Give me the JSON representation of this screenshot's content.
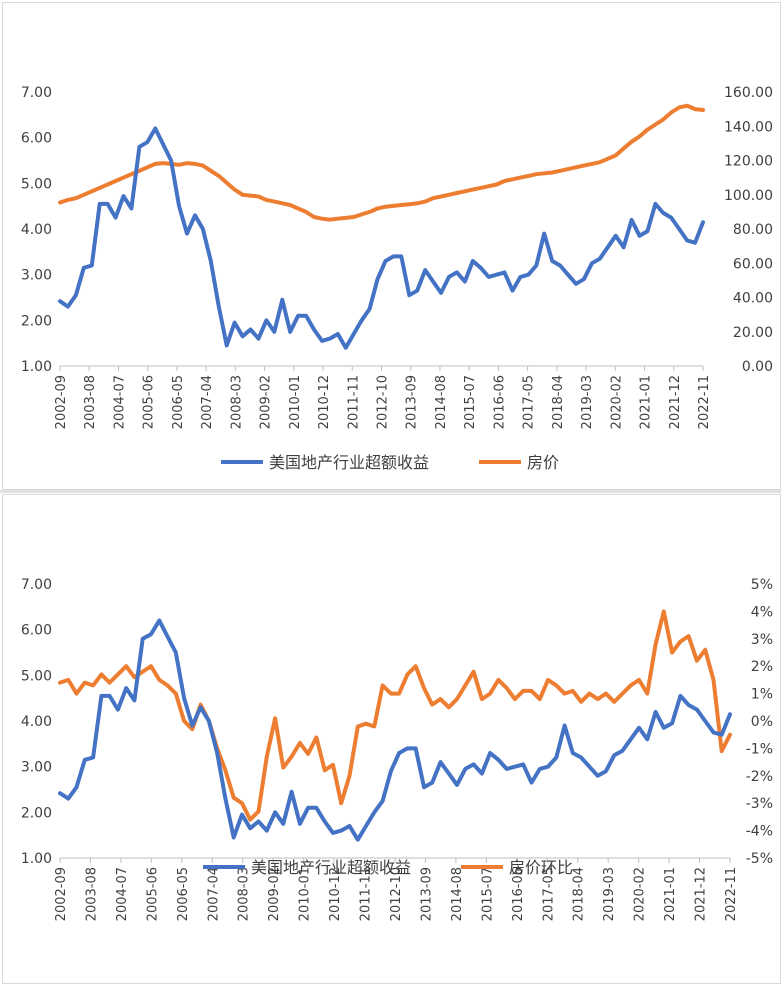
{
  "chart_data": [
    {
      "type": "line",
      "x_ticks": [
        "2002-09",
        "2003-08",
        "2004-07",
        "2005-06",
        "2006-05",
        "2007-04",
        "2008-03",
        "2009-02",
        "2010-01",
        "2010-12",
        "2011-11",
        "2012-10",
        "2013-09",
        "2014-08",
        "2015-07",
        "2016-06",
        "2017-05",
        "2018-04",
        "2019-03",
        "2020-02",
        "2021-01",
        "2021-12",
        "2022-11"
      ],
      "y_left": {
        "min": 1.0,
        "max": 7.0,
        "ticks": [
          "1.00",
          "2.00",
          "3.00",
          "4.00",
          "5.00",
          "6.00",
          "7.00"
        ]
      },
      "y_right": {
        "min": 0,
        "max": 160,
        "ticks": [
          "0.00",
          "20.00",
          "40.00",
          "60.00",
          "80.00",
          "100.00",
          "120.00",
          "140.00",
          "160.00"
        ]
      },
      "legend_position": "bottom",
      "grid": false,
      "series": [
        {
          "name": "美国地产行业超额收益",
          "axis": "left",
          "color": "#4472c4",
          "values": [
            2.42,
            2.3,
            2.55,
            3.15,
            3.2,
            4.55,
            4.55,
            4.25,
            4.72,
            4.45,
            5.8,
            5.9,
            6.2,
            5.85,
            5.5,
            4.5,
            3.9,
            4.3,
            4.0,
            3.3,
            2.3,
            1.45,
            1.95,
            1.65,
            1.8,
            1.6,
            2.0,
            1.75,
            2.45,
            1.75,
            2.1,
            2.1,
            1.8,
            1.55,
            1.6,
            1.7,
            1.4,
            1.7,
            2.0,
            2.25,
            2.9,
            3.3,
            3.4,
            3.4,
            2.55,
            2.65,
            3.1,
            2.85,
            2.6,
            2.95,
            3.05,
            2.85,
            3.3,
            3.15,
            2.95,
            3.0,
            3.05,
            2.65,
            2.95,
            3.0,
            3.2,
            3.9,
            3.3,
            3.2,
            3.0,
            2.8,
            2.9,
            3.25,
            3.35,
            3.6,
            3.85,
            3.6,
            4.2,
            3.85,
            3.95,
            4.55,
            4.35,
            4.25,
            4.0,
            3.75,
            3.7,
            4.15
          ]
        },
        {
          "name": "房价",
          "axis": "right",
          "color": "#ed7d31",
          "values": [
            95.5,
            97,
            98,
            100,
            102,
            104,
            106,
            108,
            110,
            112,
            114,
            116,
            118,
            118.5,
            118,
            117.5,
            118.5,
            118,
            117,
            114,
            111,
            107,
            103,
            100,
            99.5,
            99,
            97,
            96,
            95,
            94,
            92,
            90,
            87,
            86,
            85.5,
            86,
            86.5,
            87,
            88.5,
            90,
            92,
            93,
            93.5,
            94,
            94.5,
            95,
            96,
            98,
            99,
            100,
            101,
            102,
            103,
            104,
            105,
            106,
            108,
            109,
            110,
            111,
            112,
            112.5,
            113,
            114,
            115,
            116,
            117,
            118,
            119,
            121,
            123,
            127,
            131,
            134,
            138,
            141,
            144,
            148,
            151,
            152,
            150,
            149.5
          ]
        }
      ]
    },
    {
      "type": "line",
      "x_ticks": [
        "2002-09",
        "2003-08",
        "2004-07",
        "2005-06",
        "2006-05",
        "2007-04",
        "2008-03",
        "2009-02",
        "2010-01",
        "2010-12",
        "2011-11",
        "2012-10",
        "2013-09",
        "2014-08",
        "2015-07",
        "2016-06",
        "2017-05",
        "2018-04",
        "2019-03",
        "2020-02",
        "2021-01",
        "2021-12",
        "2022-11"
      ],
      "y_left": {
        "min": 1.0,
        "max": 7.0,
        "ticks": [
          "1.00",
          "2.00",
          "3.00",
          "4.00",
          "5.00",
          "6.00",
          "7.00"
        ]
      },
      "y_right": {
        "min": -5,
        "max": 5,
        "ticks": [
          "-5%",
          "-4%",
          "-3%",
          "-2%",
          "-1%",
          "0%",
          "1%",
          "2%",
          "3%",
          "4%",
          "5%"
        ]
      },
      "legend_position": "bottom",
      "grid": false,
      "series": [
        {
          "name": "美国地产行业超额收益",
          "axis": "left",
          "color": "#4472c4",
          "values": [
            2.42,
            2.3,
            2.55,
            3.15,
            3.2,
            4.55,
            4.55,
            4.25,
            4.72,
            4.45,
            5.8,
            5.9,
            6.2,
            5.85,
            5.5,
            4.5,
            3.9,
            4.3,
            4.0,
            3.3,
            2.3,
            1.45,
            1.95,
            1.65,
            1.8,
            1.6,
            2.0,
            1.75,
            2.45,
            1.75,
            2.1,
            2.1,
            1.8,
            1.55,
            1.6,
            1.7,
            1.4,
            1.7,
            2.0,
            2.25,
            2.9,
            3.3,
            3.4,
            3.4,
            2.55,
            2.65,
            3.1,
            2.85,
            2.6,
            2.95,
            3.05,
            2.85,
            3.3,
            3.15,
            2.95,
            3.0,
            3.05,
            2.65,
            2.95,
            3.0,
            3.2,
            3.9,
            3.3,
            3.2,
            3.0,
            2.8,
            2.9,
            3.25,
            3.35,
            3.6,
            3.85,
            3.6,
            4.2,
            3.85,
            3.95,
            4.55,
            4.35,
            4.25,
            4.0,
            3.75,
            3.7,
            4.15
          ]
        },
        {
          "name": "房价环比",
          "axis": "right",
          "color": "#ed7d31",
          "values": [
            1.4,
            1.5,
            1.0,
            1.4,
            1.3,
            1.7,
            1.4,
            1.7,
            2.0,
            1.6,
            1.8,
            2.0,
            1.5,
            1.3,
            1.0,
            0.0,
            -0.3,
            0.6,
            0.0,
            -1.0,
            -1.8,
            -2.8,
            -3.0,
            -3.6,
            -3.3,
            -1.3,
            0.1,
            -1.7,
            -1.3,
            -0.8,
            -1.2,
            -0.6,
            -1.8,
            -1.6,
            -3.0,
            -2.0,
            -0.2,
            -0.1,
            -0.2,
            1.3,
            1.0,
            1.0,
            1.7,
            2.0,
            1.2,
            0.6,
            0.8,
            0.5,
            0.8,
            1.3,
            1.8,
            0.8,
            1.0,
            1.5,
            1.2,
            0.8,
            1.1,
            1.1,
            0.8,
            1.5,
            1.3,
            1.0,
            1.1,
            0.7,
            1.0,
            0.8,
            1.0,
            0.7,
            1.0,
            1.3,
            1.5,
            1.0,
            2.8,
            4.0,
            2.5,
            2.9,
            3.1,
            2.2,
            2.6,
            1.5,
            -1.1,
            -0.5
          ]
        }
      ]
    }
  ]
}
